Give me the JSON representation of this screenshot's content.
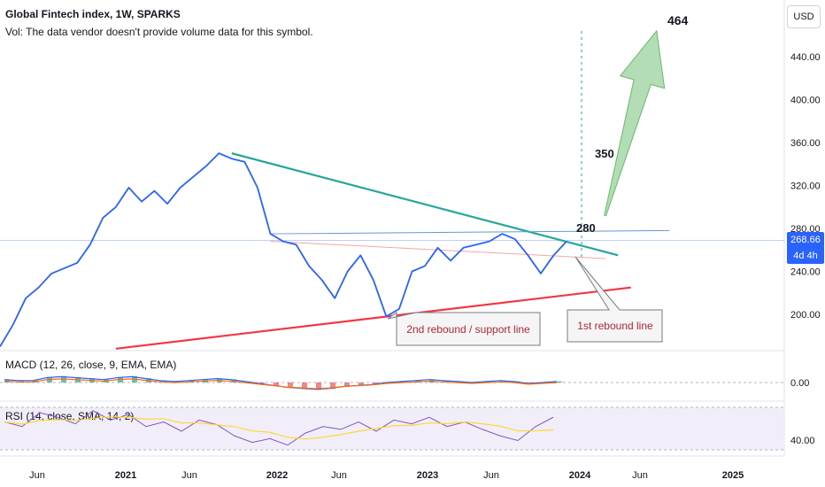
{
  "header": {
    "title": "Global Fintech index, 1W, SPARKS",
    "volume_note": "Vol: The data vendor doesn't provide volume data for this symbol."
  },
  "currency_button": "USD",
  "price_badge": {
    "price": "268.66",
    "countdown": "4d 4h"
  },
  "colors": {
    "price_line": "#2962ff",
    "resistance": "#26a69a",
    "support": "#f23645",
    "target_arrow": "#81c784",
    "macd": "#2962ff",
    "signal": "#ff6d00",
    "rsi": "#7e57c2",
    "rsi_ma": "#fdd835"
  },
  "annotations": {
    "target_label": "464",
    "level_350": "350",
    "level_280": "280",
    "callout_support": "2nd rebound / support line",
    "callout_rebound": "1st rebound line"
  },
  "panes": {
    "macd_label": "MACD (12, 26, close, 9, EMA, EMA)",
    "macd_axis_value": "0.00",
    "rsi_label": "RSI (14, close, SMA, 14, 2)",
    "rsi_axis_value": "40.00"
  },
  "chart_data": {
    "type": "line",
    "y_axis_ticks": [
      "440.00",
      "400.00",
      "360.00",
      "320.00",
      "280.00",
      "240.00",
      "200.00"
    ],
    "x_axis_ticks": [
      "Jun",
      "2021",
      "Jun",
      "2022",
      "Jun",
      "2023",
      "Jun",
      "2024",
      "Jun",
      "2025"
    ],
    "series": [
      {
        "x": [
          "2020-04",
          "2020-05",
          "2020-06",
          "2020-07",
          "2020-08",
          "2020-09",
          "2020-10",
          "2020-11",
          "2020-12",
          "2021-01",
          "2021-02",
          "2021-03",
          "2021-04",
          "2021-05",
          "2021-06",
          "2021-07",
          "2021-08",
          "2021-09",
          "2021-10",
          "2021-11",
          "2021-12",
          "2022-01",
          "2022-02",
          "2022-03",
          "2022-04",
          "2022-05",
          "2022-06",
          "2022-07",
          "2022-08",
          "2022-09",
          "2022-10",
          "2022-11",
          "2022-12",
          "2023-01",
          "2023-02",
          "2023-03",
          "2023-04",
          "2023-05",
          "2023-06",
          "2023-07",
          "2023-08",
          "2023-09",
          "2023-10",
          "2023-11",
          "2023-12"
        ],
        "values": [
          170,
          190,
          215,
          225,
          238,
          243,
          248,
          265,
          290,
          300,
          318,
          305,
          315,
          303,
          318,
          328,
          338,
          350,
          345,
          342,
          318,
          275,
          268,
          265,
          245,
          232,
          215,
          240,
          255,
          232,
          198,
          205,
          240,
          245,
          262,
          250,
          262,
          265,
          268,
          275,
          270,
          255,
          238,
          255,
          268
        ]
      }
    ],
    "trendlines": [
      {
        "name": "resistance",
        "from": [
          "2021-10",
          350
        ],
        "to": [
          "2024-04",
          255
        ]
      },
      {
        "name": "support",
        "from": [
          "2021-01",
          168
        ],
        "to": [
          "2024-05",
          225
        ]
      },
      {
        "name": "horizontal",
        "from": [
          "2022-01",
          275
        ],
        "to": [
          "2024-08",
          278
        ]
      },
      {
        "name": "rebound",
        "from": [
          "2022-01",
          268
        ],
        "to": [
          "2024-03",
          252
        ]
      }
    ],
    "projection": {
      "from": [
        "2024-03",
        292
      ],
      "to": [
        "2024-07",
        464
      ]
    },
    "current_price": 268.66
  }
}
